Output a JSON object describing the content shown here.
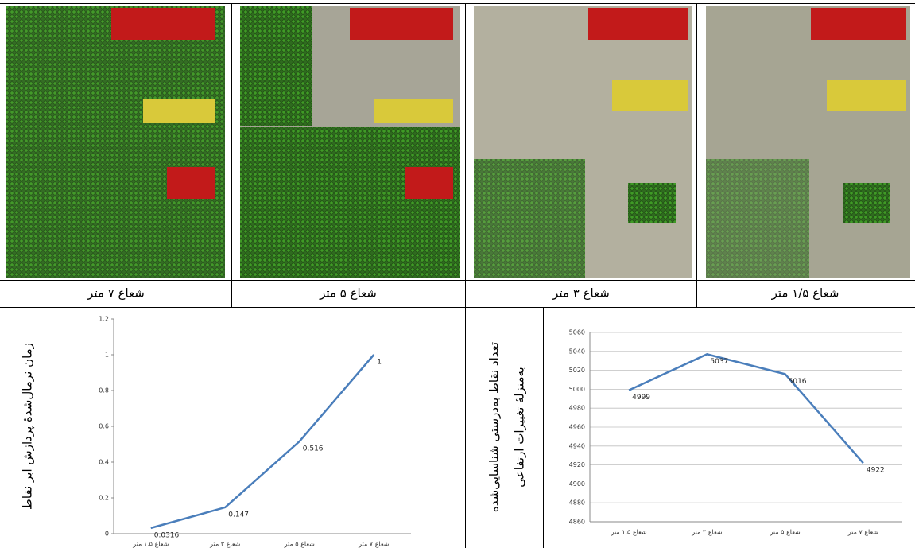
{
  "panels": [
    {
      "caption": "شعاع ۷ متر"
    },
    {
      "caption": "شعاع ۵ متر"
    },
    {
      "caption": "شعاع ۳ متر"
    },
    {
      "caption": "شعاع ۱/۵ متر"
    }
  ],
  "chart_data": [
    {
      "type": "line",
      "ylabel": [
        "زمان نرمال‌شدهٔ پردازش ابر نقاط"
      ],
      "categories": [
        "شعاع ۱.۵ متر",
        "شعاع ۳ متر",
        "شعاع ۵ متر",
        "شعاع ۷ متر"
      ],
      "values": [
        0.0316,
        0.147,
        0.516,
        1
      ],
      "color": "#4a7ebb",
      "ylim": [
        0,
        1.2
      ],
      "yticks": [
        0,
        0.2,
        0.4,
        0.6,
        0.8,
        1,
        1.2
      ],
      "grid": false
    },
    {
      "type": "line",
      "ylabel": [
        "تعداد نقاط به‌درستی شناسایی‌شده",
        "به‌منزلهٔ تغییرات ارتفاعی"
      ],
      "categories": [
        "شعاع ۱.۵ متر",
        "شعاع ۳ متر",
        "شعاع ۵ متر",
        "شعاع ۷ متر"
      ],
      "values": [
        4999,
        5037,
        5016,
        4922
      ],
      "color": "#4a7ebb",
      "ylim": [
        4860,
        5060
      ],
      "yticks": [
        4860,
        4880,
        4900,
        4920,
        4940,
        4960,
        4980,
        5000,
        5020,
        5040,
        5060
      ],
      "grid": true
    }
  ]
}
